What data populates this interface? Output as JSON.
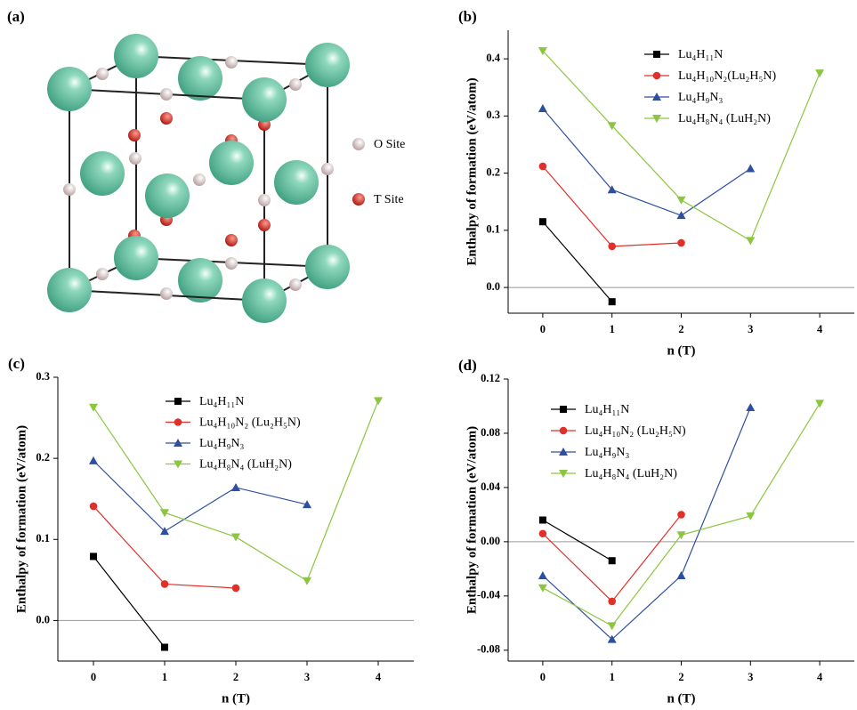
{
  "figure_a": {
    "panel_label": "(a)",
    "legend": [
      "O Site",
      "T Site"
    ]
  },
  "chart_data": [
    {
      "type": "line",
      "panel_label": "(b)",
      "xlabel": "n (T)",
      "ylabel": "Enthalpy of formation (eV/atom)",
      "x": [
        0,
        1,
        2,
        3,
        4
      ],
      "xlim": [
        -0.5,
        4.5
      ],
      "xticks": [
        0,
        1,
        2,
        3,
        4
      ],
      "ylim": [
        -0.045,
        0.45
      ],
      "yticks": [
        {
          "value": 0,
          "label": "0.0"
        },
        0.1,
        0.2,
        0.3,
        0.4
      ],
      "legend": "upper right",
      "series": [
        {
          "name": "Lu₄H₁₁N",
          "color": "#000000",
          "marker": "square",
          "values": [
            0.115,
            -0.025,
            null,
            null,
            null
          ]
        },
        {
          "name": "Lu₄H₁₀N₂(Lu₂H₅N)",
          "color": "#e0302a",
          "marker": "circle",
          "values": [
            0.212,
            0.072,
            0.078,
            null,
            null
          ]
        },
        {
          "name": "Lu₄H₉N₃",
          "color": "#2e4fa0",
          "marker": "triangle-up",
          "values": [
            0.313,
            0.171,
            0.126,
            0.208,
            null
          ]
        },
        {
          "name": "Lu₄H₈N₄ (LuH₂N)",
          "color": "#8cc63f",
          "marker": "triangle-down",
          "values": [
            0.414,
            0.283,
            0.153,
            0.082,
            0.375
          ]
        }
      ]
    },
    {
      "type": "line",
      "panel_label": "(c)",
      "xlabel": "n (T)",
      "ylabel": "Enthalpy of formation (eV/atom)",
      "x": [
        0,
        1,
        2,
        3,
        4
      ],
      "xlim": [
        -0.5,
        4.5
      ],
      "xticks": [
        0,
        1,
        2,
        3,
        4
      ],
      "ylim": [
        -0.05,
        0.3
      ],
      "yticks": [
        {
          "value": 0,
          "label": "0.0"
        },
        0.1,
        0.2,
        0.3
      ],
      "legend": "upper center",
      "series": [
        {
          "name": "Lu₄H₁₁N",
          "color": "#000000",
          "marker": "square",
          "values": [
            0.079,
            -0.033,
            null,
            null,
            null
          ]
        },
        {
          "name": "Lu₄H₁₀N₂ (Lu₂H₅N)",
          "color": "#e0302a",
          "marker": "circle",
          "values": [
            0.141,
            0.045,
            0.04,
            null,
            null
          ]
        },
        {
          "name": "Lu₄H₉N₃",
          "color": "#2e4fa0",
          "marker": "triangle-up",
          "values": [
            0.197,
            0.11,
            0.164,
            0.143,
            null
          ]
        },
        {
          "name": "Lu₄H₈N₄ (LuH₂N)",
          "color": "#8cc63f",
          "marker": "triangle-down",
          "values": [
            0.263,
            0.133,
            0.103,
            0.049,
            0.271
          ]
        }
      ]
    },
    {
      "type": "line",
      "panel_label": "(d)",
      "xlabel": "n (T)",
      "ylabel": "Enthalpy of formation (eV/atom)",
      "x": [
        0,
        1,
        2,
        3,
        4
      ],
      "xlim": [
        -0.5,
        4.5
      ],
      "xticks": [
        0,
        1,
        2,
        3,
        4
      ],
      "ylim": [
        -0.088,
        0.12
      ],
      "yticks": [
        -0.08,
        -0.04,
        {
          "value": 0,
          "label": "0.00"
        },
        0.04,
        0.08,
        0.12
      ],
      "legend": "upper left",
      "series": [
        {
          "name": "Lu₄H₁₁N",
          "color": "#000000",
          "marker": "square",
          "values": [
            0.016,
            -0.014,
            null,
            null,
            null
          ]
        },
        {
          "name": "Lu₄H₁₀N₂ (Lu₂H₅N)",
          "color": "#e0302a",
          "marker": "circle",
          "values": [
            0.006,
            -0.044,
            0.02,
            null,
            null
          ]
        },
        {
          "name": "Lu₄H₉N₃",
          "color": "#2e4fa0",
          "marker": "triangle-up",
          "values": [
            -0.025,
            -0.072,
            -0.025,
            0.099,
            null
          ]
        },
        {
          "name": "Lu₄H₈N₄ (LuH₂N)",
          "color": "#8cc63f",
          "marker": "triangle-down",
          "values": [
            -0.034,
            -0.062,
            0.005,
            0.019,
            0.102
          ]
        }
      ]
    }
  ]
}
